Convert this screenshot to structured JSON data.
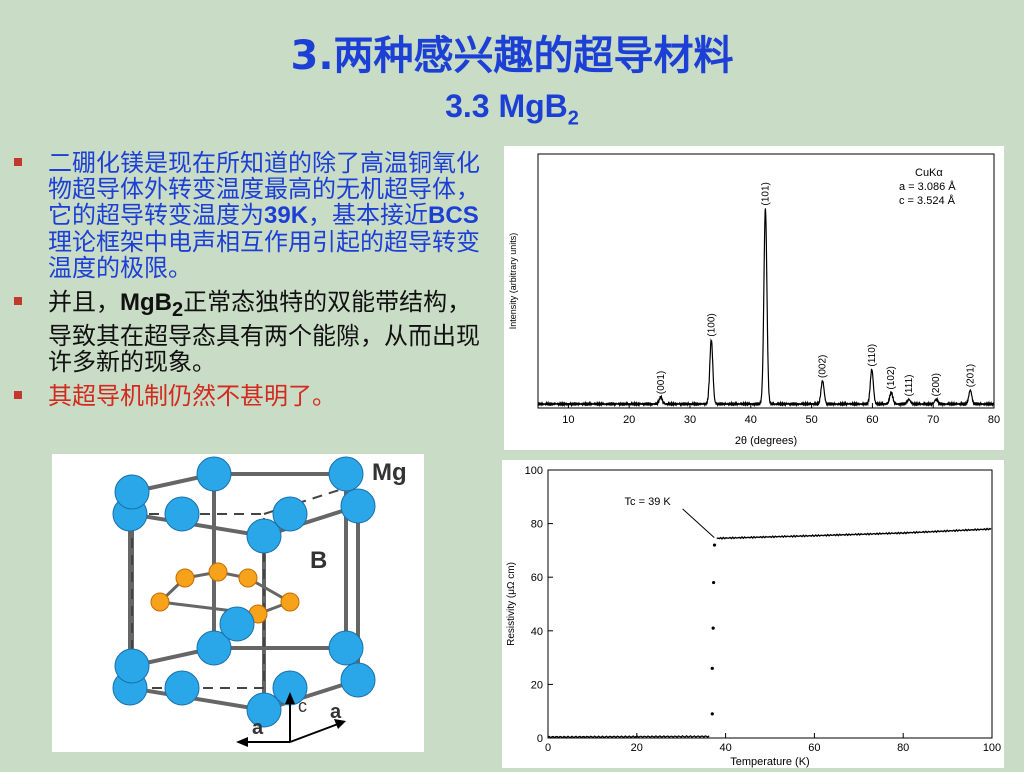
{
  "slide": {
    "title": "3.两种感兴趣的超导材料",
    "subtitle_prefix": "3.3   MgB",
    "subtitle_sub": "2"
  },
  "bullets": [
    {
      "text_a": "二硼化镁是现在所知道的除了高温铜氧化物超导体外转变温度最高的无机超导体，它的超导转变温度为",
      "bold": "39K",
      "text_b": "，基本接近",
      "bold2": "BCS",
      "text_c": "理论框架中电声相互作用引起的超导转变温度的极限。"
    },
    {
      "text_a": "并且，",
      "bold": "MgB",
      "sub": "2",
      "text_b": "正常态独特的双能带结构，导致其在超导态具有两个能隙，从而出现许多新的现象。"
    },
    {
      "text": "其超导机制仍然不甚明了。"
    }
  ],
  "crystal": {
    "label_mg": "Mg",
    "label_b": "B",
    "axis_c": "c",
    "axis_a1": "a",
    "axis_a2": "a",
    "colors": {
      "mg": "#2aa7e8",
      "b": "#f6a21a",
      "bond": "#666666"
    }
  },
  "chart_data": [
    {
      "type": "line",
      "title": "",
      "xlabel": "2θ (degrees)",
      "ylabel": "Intensity (arbitrary units)",
      "xlim": [
        5,
        80
      ],
      "xticks": [
        10,
        20,
        30,
        40,
        50,
        60,
        70,
        80
      ],
      "legend_text": [
        "CuKα",
        "a = 3.086 Å",
        "c = 3.524 Å"
      ],
      "peaks": [
        {
          "label": "(001)",
          "x": 25.2,
          "rel": 0.03
        },
        {
          "label": "(100)",
          "x": 33.5,
          "rel": 0.28
        },
        {
          "label": "(101)",
          "x": 42.4,
          "rel": 0.85
        },
        {
          "label": "(002)",
          "x": 51.8,
          "rel": 0.1
        },
        {
          "label": "(110)",
          "x": 59.9,
          "rel": 0.15
        },
        {
          "label": "(102)",
          "x": 63.1,
          "rel": 0.05
        },
        {
          "label": "(111)",
          "x": 66.0,
          "rel": 0.02
        },
        {
          "label": "(200)",
          "x": 70.5,
          "rel": 0.02
        },
        {
          "label": "(201)",
          "x": 76.1,
          "rel": 0.06
        }
      ]
    },
    {
      "type": "scatter",
      "title": "",
      "xlabel": "Temperature (K)",
      "ylabel": "Resistivity (μΩ cm)",
      "xlim": [
        0,
        100
      ],
      "ylim": [
        0,
        100
      ],
      "xticks": [
        0,
        20,
        40,
        60,
        80,
        100
      ],
      "yticks": [
        0,
        20,
        40,
        60,
        80,
        100
      ],
      "annotation": "Tc = 39 K",
      "points": [
        [
          37,
          9
        ],
        [
          37,
          26
        ],
        [
          37.2,
          41
        ],
        [
          37.3,
          58
        ],
        [
          37.5,
          72
        ]
      ],
      "normal_state": [
        [
          38,
          74.5
        ],
        [
          60,
          75.5
        ],
        [
          80,
          76.5
        ],
        [
          100,
          78
        ]
      ],
      "super_state": [
        [
          0,
          0.4
        ],
        [
          36.5,
          0.6
        ]
      ]
    }
  ]
}
